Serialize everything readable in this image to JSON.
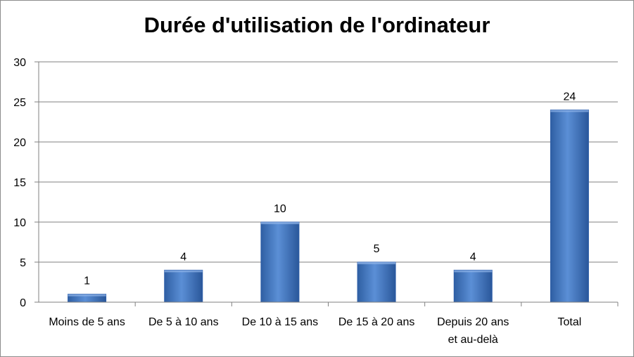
{
  "chart_data": {
    "type": "bar",
    "title": "Durée d'utilisation de l'ordinateur",
    "categories": [
      [
        "Moins de 5 ans"
      ],
      [
        "De 5 à 10 ans"
      ],
      [
        "De 10 à 15 ans"
      ],
      [
        "De 15 à 20 ans"
      ],
      [
        "Depuis 20 ans",
        "et au-delà"
      ],
      [
        "Total"
      ]
    ],
    "values": [
      1,
      4,
      10,
      5,
      4,
      24
    ],
    "data_labels": [
      "1",
      "4",
      "10",
      "5",
      "4",
      "24"
    ],
    "y_ticks": [
      "0",
      "5",
      "10",
      "15",
      "20",
      "25",
      "30"
    ],
    "ylim": [
      0,
      30
    ],
    "grid": true,
    "bar_color": "#4f81bd",
    "bar_color_dark": "#2c5da8",
    "grid_color": "#808080"
  }
}
